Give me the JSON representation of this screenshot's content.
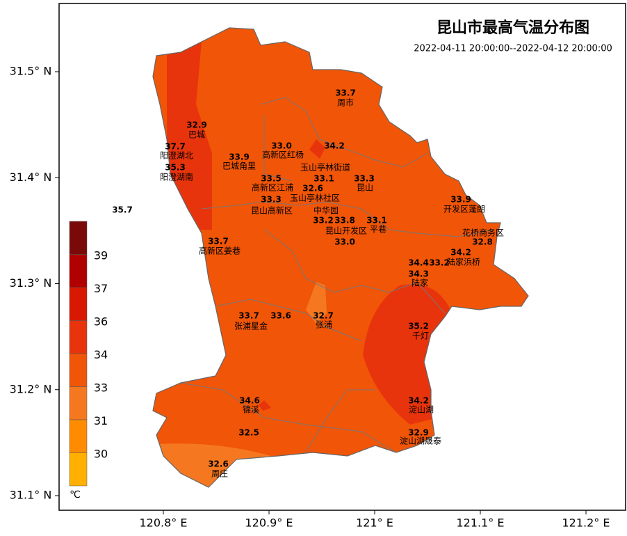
{
  "title": "昆山市最高气温分布图",
  "subtitle": "2022-04-11 20:00:00--2022-04-12 20:00:00",
  "x_ticks": [
    {
      "value": 120.8,
      "label": "120.8° E"
    },
    {
      "value": 120.9,
      "label": "120.9° E"
    },
    {
      "value": 121,
      "label": "121° E"
    },
    {
      "value": 121.1,
      "label": "121.1° E"
    },
    {
      "value": 121.2,
      "label": "121.2° E"
    }
  ],
  "y_ticks": [
    {
      "value": 31.5,
      "label": "31.5° N"
    },
    {
      "value": 31.4,
      "label": "31.4° N"
    },
    {
      "value": 31.3,
      "label": "31.3° N"
    },
    {
      "value": 31.2,
      "label": "31.2° N"
    },
    {
      "value": 31.1,
      "label": "31.1° N"
    }
  ],
  "legend": {
    "labels": [
      "39",
      "37",
      "36",
      "34",
      "33",
      "31",
      "30"
    ],
    "unit": "℃",
    "colors": [
      "#7a0a0a",
      "#b00000",
      "#d81800",
      "#e8340c",
      "#f05508",
      "#f57820",
      "#ff8c00",
      "#ffb000"
    ]
  },
  "labels": [
    "33.7",
    "周市",
    "32.9",
    "巴城",
    "37.7",
    "阳澄湖北",
    "35.3",
    "阳澄湖南",
    "35.7",
    "33.0",
    "高新区红杨",
    "34.2",
    "玉山亭林街道",
    "33.9",
    "巴城角里",
    "33.5",
    "高新区江浦",
    "33.1",
    "33.3",
    "昆山",
    "32.6",
    "玉山亭林社区",
    "33.3",
    "昆山高新区",
    "中华园",
    "33.2",
    "33.8",
    "昆山开发区",
    "33.1",
    "平巷",
    "33.0",
    "33.9",
    "开发区蓬朗",
    "花桥商务区",
    "32.8",
    "34.2",
    "陆家浜桥",
    "34.4",
    "33.2",
    "34.3",
    "陆家",
    "33.7",
    "高新区姜巷",
    "33.7",
    "张浦星金",
    "33.6",
    "32.7",
    "张浦",
    "35.2",
    "千灯",
    "34.6",
    "锦溪",
    "34.2",
    "淀山湖",
    "32.5",
    "32.9",
    "淀山湖晟泰",
    "32.6",
    "周庄"
  ]
}
